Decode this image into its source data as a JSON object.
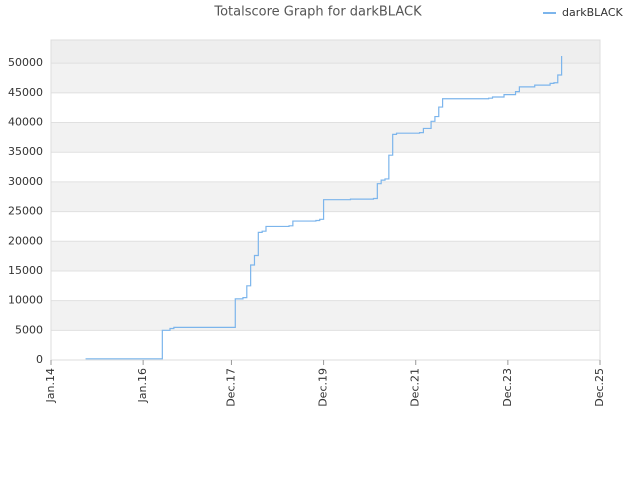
{
  "chart_data": {
    "type": "step",
    "title": "Totalscore Graph for darkBLACK",
    "xlim": [
      "2014-01",
      "2025-12"
    ],
    "xticks": [
      {
        "value": "2014-01",
        "label": "Jan.14"
      },
      {
        "value": "2016-01",
        "label": "Jan.16"
      },
      {
        "value": "2017-12",
        "label": "Dec.17"
      },
      {
        "value": "2019-12",
        "label": "Dec.19"
      },
      {
        "value": "2021-12",
        "label": "Dec.21"
      },
      {
        "value": "2023-12",
        "label": "Dec.23"
      },
      {
        "value": "2025-12",
        "label": "Dec.25"
      }
    ],
    "ylim": [
      0,
      53900
    ],
    "yticks": [
      0,
      5000,
      10000,
      15000,
      20000,
      25000,
      30000,
      35000,
      40000,
      45000,
      50000
    ],
    "grid": true,
    "legend": "top-right",
    "x": [
      "2014-10",
      "2016-06",
      "2016-08",
      "2016-09",
      "2018-01",
      "2018-03",
      "2018-04",
      "2018-04",
      "2018-05",
      "2018-05",
      "2018-06",
      "2018-06",
      "2018-07",
      "2018-08",
      "2018-09",
      "2019-03",
      "2019-04",
      "2019-04",
      "2019-10",
      "2019-11",
      "2019-12",
      "2019-12",
      "2020-07",
      "2021-01",
      "2021-02",
      "2021-02",
      "2021-03",
      "2021-04",
      "2021-05",
      "2021-06",
      "2021-06",
      "2021-07",
      "2022-01",
      "2022-02",
      "2022-04",
      "2022-04",
      "2022-05",
      "2022-06",
      "2022-07",
      "2022-07",
      "2023-07",
      "2023-08",
      "2023-11",
      "2024-02",
      "2024-03",
      "2024-07",
      "2024-11",
      "2024-12",
      "2025-01",
      "2025-01",
      "2025-02",
      "2025-02"
    ],
    "series": [
      {
        "name": "darkBLACK",
        "color": "#7cb5ec",
        "values": [
          200,
          5000,
          5300,
          5500,
          10300,
          10500,
          11500,
          12500,
          15000,
          16000,
          17000,
          17600,
          21500,
          21700,
          22500,
          22600,
          23300,
          23400,
          23500,
          23700,
          25500,
          27000,
          27100,
          27200,
          28000,
          29700,
          30300,
          30500,
          34500,
          36000,
          38000,
          38200,
          38300,
          39000,
          39100,
          40200,
          41000,
          42600,
          43200,
          44000,
          44100,
          44300,
          44700,
          45200,
          46000,
          46300,
          46600,
          46700,
          47500,
          48000,
          49500,
          51200
        ]
      }
    ]
  }
}
